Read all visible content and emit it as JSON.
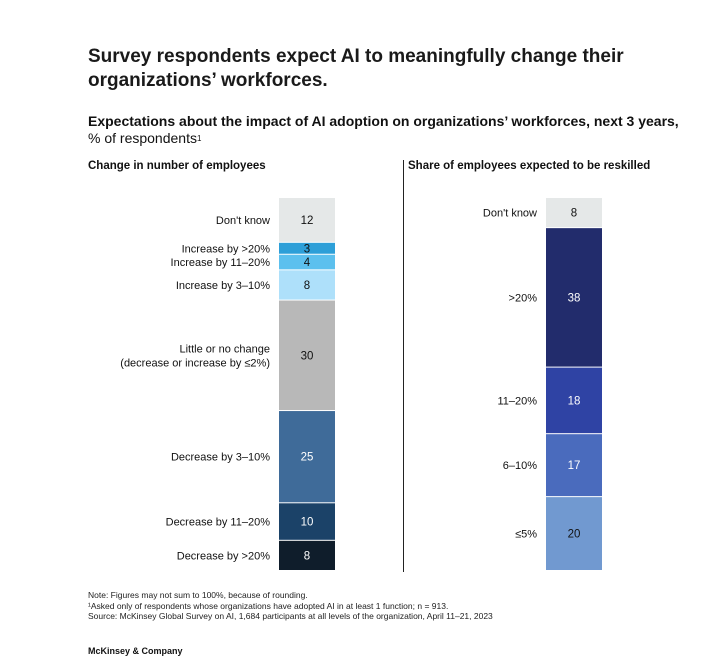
{
  "title": "Survey respondents expect AI to meaningfully change their organizations’ workforces.",
  "subtitle": {
    "bold": "Expectations about the impact of AI adoption on organizations’ workforces, next 3 years,",
    "normal": "% of respondents",
    "footnote_mark": "1"
  },
  "chart_data": [
    {
      "type": "bar",
      "stacked": true,
      "title": "Change in number of employees",
      "categories": [
        "Don't know",
        "Increase by >20%",
        "Increase by 11–20%",
        "Increase by 3–10%",
        "Little or no change\n(decrease or increase by ≤2%)",
        "Decrease by 3–10%",
        "Decrease by 11–20%",
        "Decrease by >20%"
      ],
      "values": [
        12,
        3,
        4,
        8,
        30,
        25,
        10,
        8
      ],
      "colors": [
        "#e5e8e8",
        "#2d9fd8",
        "#5cc0ee",
        "#aee0fa",
        "#b8b8b8",
        "#3f6b99",
        "#1b4268",
        "#0f1d2b"
      ],
      "label_colors": [
        "#111111",
        "#111111",
        "#111111",
        "#111111",
        "#111111",
        "#ffffff",
        "#ffffff",
        "#ffffff"
      ]
    },
    {
      "type": "bar",
      "stacked": true,
      "title": "Share of employees expected to be reskilled",
      "categories": [
        "Don't know",
        ">20%",
        "11–20%",
        "6–10%",
        "≤5%"
      ],
      "values": [
        8,
        38,
        18,
        17,
        20
      ],
      "colors": [
        "#e5e8e8",
        "#222c6c",
        "#2f43a4",
        "#4a6bbd",
        "#7199d0"
      ],
      "label_colors": [
        "#111111",
        "#ffffff",
        "#ffffff",
        "#ffffff",
        "#111111"
      ]
    }
  ],
  "notes": [
    "Note: Figures may not sum to 100%, because of rounding.",
    "¹Asked only of respondents whose organizations have adopted AI in at least 1 function; n = 913.",
    "Source: McKinsey Global Survey on AI, 1,684 participants at all levels of the organization, April 11–21, 2023"
  ],
  "brand": "McKinsey & Company"
}
